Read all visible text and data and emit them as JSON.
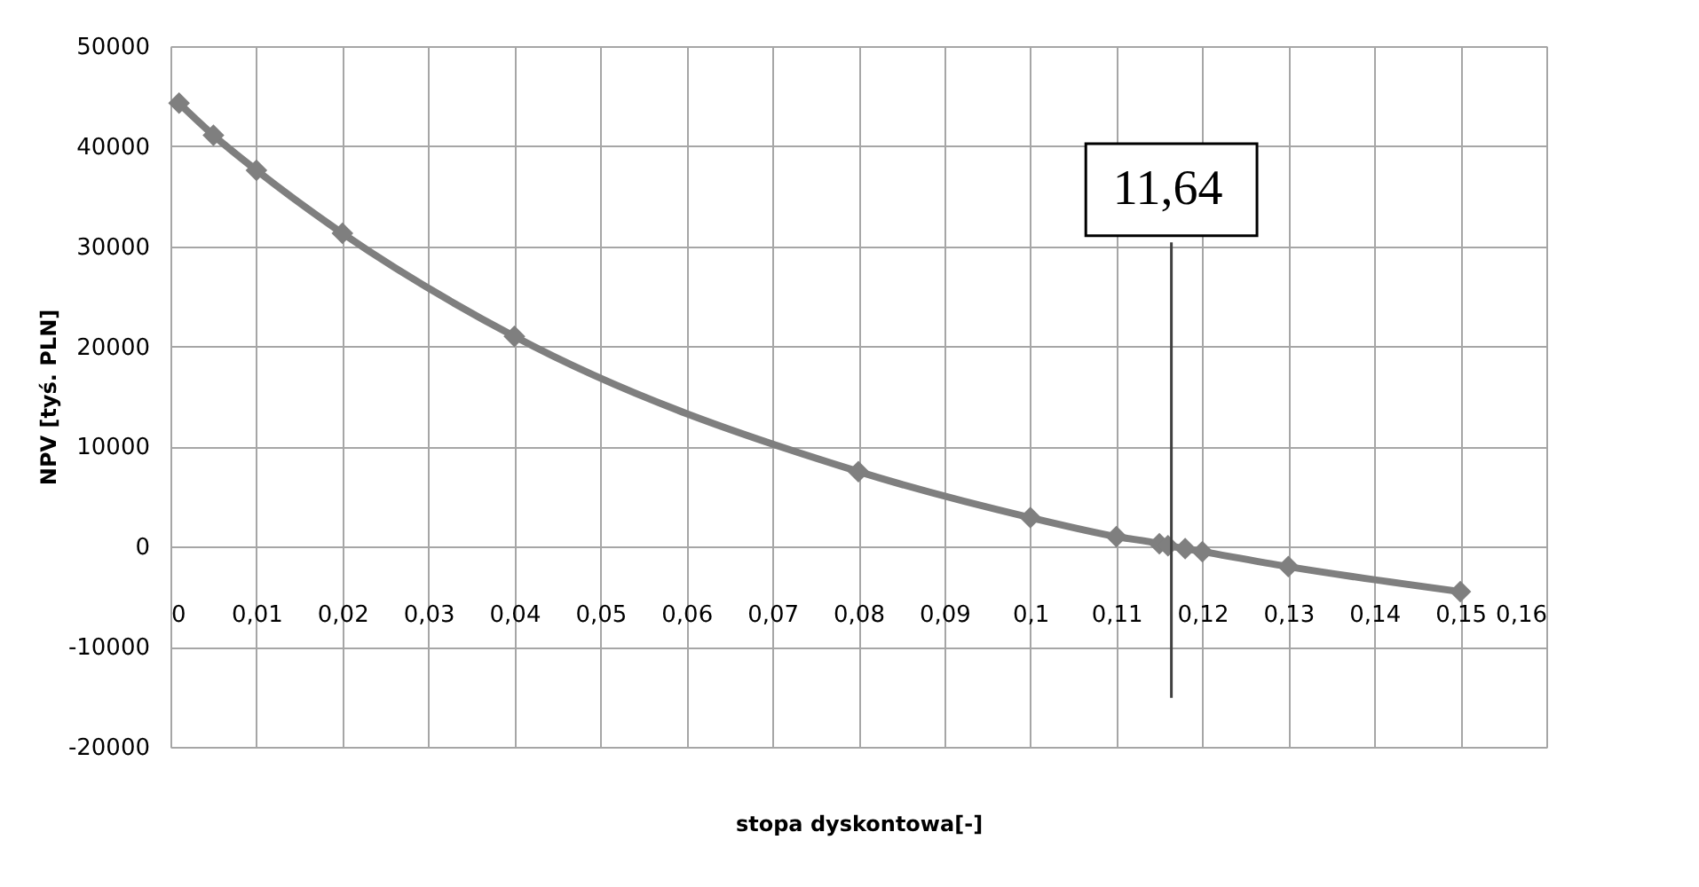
{
  "chart_data": {
    "type": "line",
    "xlabel": "stopa dyskontowa[-]",
    "ylabel": "NPV [tyś. PLN]",
    "x": [
      0.001,
      0.005,
      0.01,
      0.02,
      0.04,
      0.08,
      0.1,
      0.11,
      0.115,
      0.116,
      0.118,
      0.12,
      0.13,
      0.15
    ],
    "series": [
      {
        "color": "#7f7f7f",
        "values": [
          44300,
          41100,
          37600,
          31300,
          21000,
          7500,
          2900,
          1000,
          300,
          100,
          -200,
          -500,
          -2000,
          -4500
        ]
      }
    ],
    "xlim": [
      0,
      0.16
    ],
    "xticks": [
      0,
      {
        "value": 0.01,
        "label": "0,01"
      },
      {
        "value": 0.02,
        "label": "0,02"
      },
      {
        "value": 0.03,
        "label": "0,03"
      },
      {
        "value": 0.04,
        "label": "0,04"
      },
      {
        "value": 0.05,
        "label": "0,05"
      },
      {
        "value": 0.06,
        "label": "0,06"
      },
      {
        "value": 0.07,
        "label": "0,07"
      },
      {
        "value": 0.08,
        "label": "0,08"
      },
      {
        "value": 0.09,
        "label": "0,09"
      },
      {
        "value": 0.1,
        "label": "0,1"
      },
      {
        "value": 0.11,
        "label": "0,11"
      },
      {
        "value": 0.12,
        "label": "0,12"
      },
      {
        "value": 0.13,
        "label": "0,13"
      },
      {
        "value": 0.14,
        "label": "0,14"
      },
      {
        "value": 0.15,
        "label": "0,15"
      },
      {
        "value": 0.16,
        "label": "0,16"
      }
    ],
    "ylim": [
      -20000,
      50000
    ],
    "yticks": [
      -20000,
      -10000,
      0,
      10000,
      20000,
      30000,
      40000,
      50000
    ],
    "ref_lines": [
      {
        "axis": "x",
        "value": 0.1164,
        "label": "11,64",
        "color": "#404040"
      }
    ],
    "grid": true,
    "marker": "diamond",
    "line_style": "solid"
  }
}
